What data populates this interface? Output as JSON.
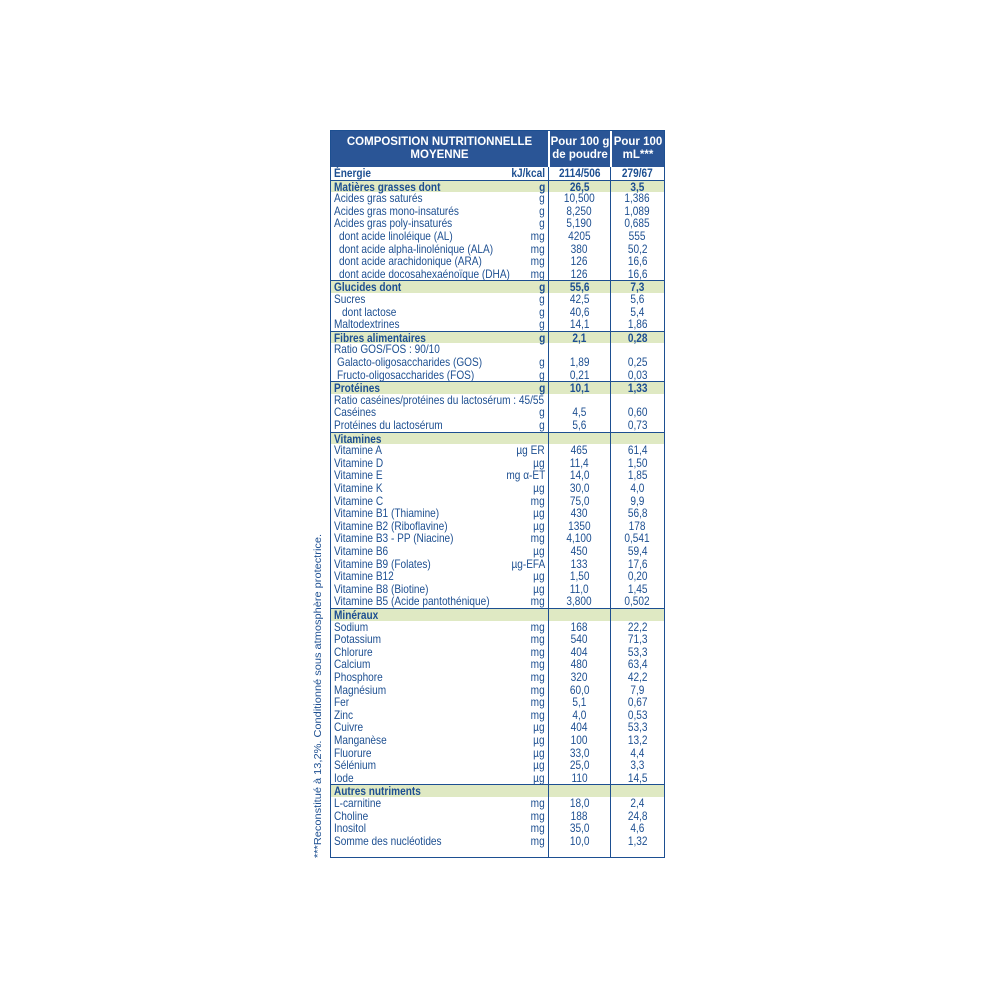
{
  "header": {
    "title": "COMPOSITION NUTRITIONNELLE MOYENNE",
    "col1": "Pour 100 g de poudre",
    "col2": "Pour 100 mL***"
  },
  "note": "***Reconstitué à 13,2%. Conditionné sous atmosphère protectrice.",
  "rows": [
    {
      "label": "Énergie",
      "unit": "kJ/kcal",
      "v1": "2114/506",
      "v2": "279/67",
      "bold": true
    },
    {
      "label": "Matières grasses dont",
      "unit": "g",
      "v1": "26,5",
      "v2": "3,5",
      "highlight": true
    },
    {
      "label": "Acides gras saturés",
      "unit": "g",
      "v1": "10,500",
      "v2": "1,386"
    },
    {
      "label": "Acides gras mono-insaturés",
      "unit": "g",
      "v1": "8,250",
      "v2": "1,089"
    },
    {
      "label": "Acides gras poly-insaturés",
      "unit": "g",
      "v1": "5,190",
      "v2": "0,685"
    },
    {
      "label": "dont acide linoléique (AL)",
      "unit": "mg",
      "v1": "4205",
      "v2": "555"
    },
    {
      "label": "dont acide alpha-linolénique (ALA)",
      "unit": "mg",
      "v1": "380",
      "v2": "50,2"
    },
    {
      "label": "dont acide arachidonique (ARA)",
      "unit": "mg",
      "v1": "126",
      "v2": "16,6"
    },
    {
      "label": "dont acide docosahexaénoïque (DHA)",
      "unit": "mg",
      "v1": "126",
      "v2": "16,6"
    },
    {
      "label": "Glucides dont",
      "unit": "g",
      "v1": "55,6",
      "v2": "7,3",
      "highlight": true
    },
    {
      "label": "Sucres",
      "unit": "g",
      "v1": "42,5",
      "v2": "5,6"
    },
    {
      "label": "dont lactose",
      "unit": "g",
      "v1": "40,6",
      "v2": "5,4"
    },
    {
      "label": "Maltodextrines",
      "unit": "g",
      "v1": "14,1",
      "v2": "1,86"
    },
    {
      "label": "Fibres alimentaires",
      "unit": "g",
      "v1": "2,1",
      "v2": "0,28",
      "highlight": true
    },
    {
      "label": "Ratio GOS/FOS : 90/10"
    },
    {
      "label": "Galacto-oligosaccharides (GOS)",
      "unit": "g",
      "v1": "1,89",
      "v2": "0,25"
    },
    {
      "label": "Fructo-oligosaccharides (FOS)",
      "unit": "g",
      "v1": "0,21",
      "v2": "0,03"
    },
    {
      "label": "Protéines",
      "unit": "g",
      "v1": "10,1",
      "v2": "1,33",
      "highlight": true
    },
    {
      "label": "Ratio caséines/protéines du lactosérum : 45/55"
    },
    {
      "label": "Caséines",
      "unit": "g",
      "v1": "4,5",
      "v2": "0,60"
    },
    {
      "label": "Protéines du lactosérum",
      "unit": "g",
      "v1": "5,6",
      "v2": "0,73"
    },
    {
      "label": "Vitamines",
      "highlight": true
    },
    {
      "label": "Vitamine A",
      "unit": "µg ER",
      "v1": "465",
      "v2": "61,4"
    },
    {
      "label": "Vitamine D",
      "unit": "µg",
      "v1": "11,4",
      "v2": "1,50"
    },
    {
      "label": "Vitamine E",
      "unit": "mg α-ET",
      "v1": "14,0",
      "v2": "1,85"
    },
    {
      "label": "Vitamine K",
      "unit": "µg",
      "v1": "30,0",
      "v2": "4,0"
    },
    {
      "label": "Vitamine C",
      "unit": "mg",
      "v1": "75,0",
      "v2": "9,9"
    },
    {
      "label": "Vitamine B1 (Thiamine)",
      "unit": "µg",
      "v1": "430",
      "v2": "56,8"
    },
    {
      "label": "Vitamine B2 (Riboflavine)",
      "unit": "µg",
      "v1": "1350",
      "v2": "178"
    },
    {
      "label": "Vitamine B3 - PP (Niacine)",
      "unit": "mg",
      "v1": "4,100",
      "v2": "0,541"
    },
    {
      "label": "Vitamine B6",
      "unit": "µg",
      "v1": "450",
      "v2": "59,4"
    },
    {
      "label": "Vitamine B9 (Folates)",
      "unit": "µg-EFA",
      "v1": "133",
      "v2": "17,6"
    },
    {
      "label": "Vitamine B12",
      "unit": "µg",
      "v1": "1,50",
      "v2": "0,20"
    },
    {
      "label": "Vitamine B8 (Biotine)",
      "unit": "µg",
      "v1": "11,0",
      "v2": "1,45"
    },
    {
      "label": "Vitamine B5 (Acide pantothénique)",
      "unit": "mg",
      "v1": "3,800",
      "v2": "0,502"
    },
    {
      "label": "Minéraux",
      "highlight": true
    },
    {
      "label": "Sodium",
      "unit": "mg",
      "v1": "168",
      "v2": "22,2"
    },
    {
      "label": "Potassium",
      "unit": "mg",
      "v1": "540",
      "v2": "71,3"
    },
    {
      "label": "Chlorure",
      "unit": "mg",
      "v1": "404",
      "v2": "53,3"
    },
    {
      "label": "Calcium",
      "unit": "mg",
      "v1": "480",
      "v2": "63,4"
    },
    {
      "label": "Phosphore",
      "unit": "mg",
      "v1": "320",
      "v2": "42,2"
    },
    {
      "label": "Magnésium",
      "unit": "mg",
      "v1": "60,0",
      "v2": "7,9"
    },
    {
      "label": "Fer",
      "unit": "mg",
      "v1": "5,1",
      "v2": "0,67"
    },
    {
      "label": "Zinc",
      "unit": "mg",
      "v1": "4,0",
      "v2": "0,53"
    },
    {
      "label": "Cuivre",
      "unit": "µg",
      "v1": "404",
      "v2": "53,3"
    },
    {
      "label": "Manganèse",
      "unit": "µg",
      "v1": "100",
      "v2": "13,2"
    },
    {
      "label": "Fluorure",
      "unit": "µg",
      "v1": "33,0",
      "v2": "4,4"
    },
    {
      "label": "Sélénium",
      "unit": "µg",
      "v1": "25,0",
      "v2": "3,3"
    },
    {
      "label": "Iode",
      "unit": "µg",
      "v1": "110",
      "v2": "14,5"
    },
    {
      "label": "Autres nutriments",
      "highlight": true
    },
    {
      "label": "L-carnitine",
      "unit": "mg",
      "v1": "18,0",
      "v2": "2,4"
    },
    {
      "label": "Choline",
      "unit": "mg",
      "v1": "188",
      "v2": "24,8"
    },
    {
      "label": "Inositol",
      "unit": "mg",
      "v1": "35,0",
      "v2": "4,6"
    },
    {
      "label": "Somme des nucléotides",
      "unit": "mg",
      "v1": "10,0",
      "v2": "1,32"
    }
  ]
}
